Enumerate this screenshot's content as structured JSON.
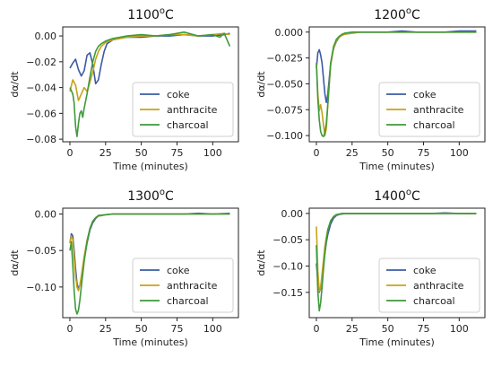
{
  "chart_data": [
    {
      "type": "line",
      "title": "1100°C",
      "title_base": "1100",
      "title_sup": "o",
      "title_suffix": "C",
      "xlabel": "Time (minutes)",
      "ylabel": "dα/dt",
      "xlim": [
        -5,
        118
      ],
      "ylim": [
        -0.082,
        0.007
      ],
      "xticks": [
        0,
        25,
        50,
        75,
        100
      ],
      "yticks": [
        0.0,
        -0.02,
        -0.04,
        -0.06,
        -0.08
      ],
      "ytick_labels": [
        "0.00",
        "−0.02",
        "−0.04",
        "−0.06",
        "−0.08"
      ],
      "grid": false,
      "legend_position": "lower-right",
      "series": [
        {
          "name": "coke",
          "color": "#3b5ba5",
          "x": [
            0,
            2,
            4,
            6,
            8,
            10,
            12,
            14,
            16,
            18,
            20,
            22,
            24,
            26,
            30,
            35,
            40,
            50,
            60,
            70,
            80,
            90,
            100,
            108,
            112
          ],
          "y": [
            -0.025,
            -0.021,
            -0.018,
            -0.026,
            -0.031,
            -0.027,
            -0.015,
            -0.013,
            -0.022,
            -0.037,
            -0.034,
            -0.022,
            -0.012,
            -0.006,
            -0.003,
            -0.002,
            -0.001,
            -0.001,
            0.0,
            0.0,
            0.001,
            0.0,
            0.0,
            0.001,
            0.002
          ]
        },
        {
          "name": "anthracite",
          "color": "#c8a21a",
          "x": [
            0,
            2,
            4,
            6,
            8,
            10,
            12,
            14,
            16,
            18,
            20,
            22,
            25,
            30,
            35,
            40,
            50,
            60,
            70,
            80,
            90,
            100,
            108,
            112
          ],
          "y": [
            -0.043,
            -0.034,
            -0.038,
            -0.05,
            -0.045,
            -0.04,
            -0.043,
            -0.036,
            -0.028,
            -0.018,
            -0.012,
            -0.008,
            -0.005,
            -0.003,
            -0.002,
            -0.001,
            0.0,
            0.0,
            0.001,
            0.001,
            0.0,
            0.001,
            0.002,
            0.001
          ]
        },
        {
          "name": "charcoal",
          "color": "#3f9a3a",
          "x": [
            0,
            2,
            3,
            4,
            5,
            6,
            7,
            8,
            9,
            10,
            12,
            14,
            16,
            18,
            20,
            22,
            25,
            30,
            35,
            40,
            50,
            60,
            70,
            80,
            90,
            100,
            105,
            108,
            110,
            112
          ],
          "y": [
            -0.04,
            -0.045,
            -0.052,
            -0.07,
            -0.078,
            -0.068,
            -0.06,
            -0.058,
            -0.063,
            -0.056,
            -0.045,
            -0.032,
            -0.02,
            -0.012,
            -0.008,
            -0.006,
            -0.004,
            -0.002,
            -0.001,
            0.0,
            0.001,
            0.0,
            0.001,
            0.003,
            0.0,
            0.001,
            -0.001,
            0.002,
            -0.003,
            -0.008
          ]
        }
      ]
    },
    {
      "type": "line",
      "title": "1200°C",
      "title_base": "1200",
      "title_sup": "o",
      "title_suffix": "C",
      "xlabel": "Time (minutes)",
      "ylabel": "dα/dt",
      "xlim": [
        -5,
        118
      ],
      "ylim": [
        -0.106,
        0.005
      ],
      "xticks": [
        0,
        25,
        50,
        75,
        100
      ],
      "yticks": [
        0.0,
        -0.025,
        -0.05,
        -0.075,
        -0.1
      ],
      "ytick_labels": [
        "0.000",
        "−0.025",
        "−0.050",
        "−0.075",
        "−0.100"
      ],
      "grid": false,
      "legend_position": "lower-right",
      "series": [
        {
          "name": "coke",
          "color": "#3b5ba5",
          "x": [
            0,
            1,
            2,
            3,
            4,
            5,
            6,
            7,
            8,
            9,
            10,
            12,
            14,
            16,
            18,
            20,
            25,
            30,
            40,
            50,
            60,
            70,
            80,
            90,
            100,
            112
          ],
          "y": [
            -0.035,
            -0.02,
            -0.017,
            -0.022,
            -0.03,
            -0.045,
            -0.06,
            -0.068,
            -0.06,
            -0.045,
            -0.03,
            -0.016,
            -0.009,
            -0.005,
            -0.003,
            -0.002,
            -0.001,
            0.0,
            0.0,
            0.0,
            0.001,
            0.0,
            0.0,
            0.0,
            0.001,
            0.001
          ]
        },
        {
          "name": "anthracite",
          "color": "#c8a21a",
          "x": [
            0,
            1,
            2,
            3,
            4,
            5,
            6,
            7,
            8,
            9,
            10,
            12,
            14,
            16,
            18,
            20,
            25,
            30,
            40,
            50,
            60,
            70,
            80,
            90,
            100,
            112
          ],
          "y": [
            -0.03,
            -0.06,
            -0.076,
            -0.07,
            -0.078,
            -0.09,
            -0.1,
            -0.093,
            -0.07,
            -0.05,
            -0.032,
            -0.016,
            -0.008,
            -0.005,
            -0.003,
            -0.002,
            -0.001,
            0.0,
            0.0,
            0.0,
            0.0,
            0.0,
            0.0,
            0.0,
            0.0,
            0.0
          ]
        },
        {
          "name": "charcoal",
          "color": "#3f9a3a",
          "x": [
            0,
            1,
            2,
            3,
            4,
            5,
            6,
            7,
            8,
            9,
            10,
            12,
            14,
            16,
            18,
            20,
            25,
            30,
            40,
            50,
            60,
            70,
            80,
            90,
            100,
            112
          ],
          "y": [
            -0.03,
            -0.065,
            -0.085,
            -0.096,
            -0.1,
            -0.101,
            -0.097,
            -0.088,
            -0.07,
            -0.05,
            -0.03,
            -0.014,
            -0.007,
            -0.004,
            -0.002,
            -0.001,
            0.0,
            0.0,
            0.0,
            0.0,
            0.0,
            0.0,
            0.0,
            0.0,
            0.0,
            0.0
          ]
        }
      ]
    },
    {
      "type": "line",
      "title": "1300°C",
      "title_base": "1300",
      "title_sup": "o",
      "title_suffix": "C",
      "xlabel": "Time (minutes)",
      "ylabel": "dα/dt",
      "xlim": [
        -5,
        118
      ],
      "ylim": [
        -0.142,
        0.008
      ],
      "xticks": [
        0,
        25,
        50,
        75,
        100
      ],
      "yticks": [
        0.0,
        -0.05,
        -0.1
      ],
      "ytick_labels": [
        "0.00",
        "−0.05",
        "−0.10"
      ],
      "grid": false,
      "legend_position": "lower-right",
      "series": [
        {
          "name": "coke",
          "color": "#3b5ba5",
          "x": [
            0,
            1,
            2,
            3,
            4,
            5,
            6,
            7,
            8,
            10,
            12,
            14,
            16,
            18,
            20,
            25,
            30,
            40,
            50,
            60,
            70,
            80,
            90,
            100,
            112
          ],
          "y": [
            -0.04,
            -0.027,
            -0.03,
            -0.05,
            -0.075,
            -0.095,
            -0.102,
            -0.098,
            -0.088,
            -0.062,
            -0.04,
            -0.022,
            -0.012,
            -0.006,
            -0.003,
            -0.001,
            0.0,
            0.0,
            0.0,
            0.0,
            0.0,
            0.0,
            0.001,
            0.0,
            0.001
          ]
        },
        {
          "name": "anthracite",
          "color": "#c8a21a",
          "x": [
            0,
            1,
            2,
            3,
            4,
            5,
            6,
            7,
            8,
            10,
            12,
            14,
            16,
            18,
            20,
            25,
            30,
            40,
            50,
            60,
            70,
            80,
            90,
            100,
            112
          ],
          "y": [
            -0.04,
            -0.03,
            -0.035,
            -0.06,
            -0.085,
            -0.1,
            -0.105,
            -0.098,
            -0.085,
            -0.058,
            -0.036,
            -0.02,
            -0.01,
            -0.005,
            -0.003,
            -0.001,
            0.0,
            0.0,
            0.0,
            0.0,
            0.0,
            0.0,
            0.0,
            0.0,
            0.0
          ]
        },
        {
          "name": "charcoal",
          "color": "#3f9a3a",
          "x": [
            0,
            1,
            2,
            3,
            4,
            5,
            6,
            7,
            8,
            10,
            12,
            14,
            16,
            18,
            20,
            25,
            30,
            40,
            50,
            60,
            70,
            80,
            90,
            100,
            112
          ],
          "y": [
            -0.05,
            -0.038,
            -0.07,
            -0.105,
            -0.13,
            -0.137,
            -0.132,
            -0.118,
            -0.1,
            -0.065,
            -0.038,
            -0.02,
            -0.01,
            -0.005,
            -0.002,
            -0.001,
            0.0,
            0.0,
            0.0,
            0.0,
            0.0,
            0.0,
            0.0,
            0.0,
            0.0
          ]
        }
      ]
    },
    {
      "type": "line",
      "title": "1400°C",
      "title_base": "1400",
      "title_sup": "o",
      "title_suffix": "C",
      "xlabel": "Time (minutes)",
      "ylabel": "dα/dt",
      "xlim": [
        -5,
        118
      ],
      "ylim": [
        -0.198,
        0.01
      ],
      "xticks": [
        0,
        25,
        50,
        75,
        100
      ],
      "yticks": [
        0.0,
        -0.05,
        -0.1,
        -0.15
      ],
      "ytick_labels": [
        "0.00",
        "−0.05",
        "−0.10",
        "−0.15"
      ],
      "grid": false,
      "legend_position": "lower-right",
      "series": [
        {
          "name": "coke",
          "color": "#3b5ba5",
          "x": [
            0,
            1,
            2,
            3,
            4,
            5,
            6,
            7,
            8,
            10,
            12,
            14,
            16,
            18,
            20,
            25,
            30,
            40,
            50,
            60,
            70,
            80,
            90,
            100,
            112
          ],
          "y": [
            -0.095,
            -0.13,
            -0.15,
            -0.142,
            -0.122,
            -0.098,
            -0.075,
            -0.055,
            -0.04,
            -0.02,
            -0.009,
            -0.004,
            -0.002,
            -0.001,
            0.0,
            0.0,
            0.0,
            0.0,
            0.0,
            0.0,
            0.0,
            0.0,
            0.001,
            0.0,
            0.0
          ]
        },
        {
          "name": "anthracite",
          "color": "#c8a21a",
          "x": [
            0,
            1,
            2,
            3,
            4,
            5,
            6,
            7,
            8,
            10,
            12,
            14,
            16,
            18,
            20,
            25,
            30,
            40,
            50,
            60,
            70,
            80,
            90,
            100,
            112
          ],
          "y": [
            -0.025,
            -0.11,
            -0.148,
            -0.14,
            -0.115,
            -0.088,
            -0.062,
            -0.045,
            -0.03,
            -0.014,
            -0.006,
            -0.003,
            -0.001,
            0.0,
            0.0,
            0.0,
            0.0,
            0.0,
            0.0,
            0.0,
            0.0,
            0.0,
            0.0,
            0.0,
            0.0
          ]
        },
        {
          "name": "charcoal",
          "color": "#3f9a3a",
          "x": [
            0,
            1,
            2,
            3,
            4,
            5,
            6,
            7,
            8,
            10,
            12,
            14,
            16,
            18,
            20,
            25,
            30,
            40,
            50,
            60,
            70,
            80,
            90,
            100,
            112
          ],
          "y": [
            -0.06,
            -0.15,
            -0.185,
            -0.17,
            -0.14,
            -0.105,
            -0.075,
            -0.05,
            -0.032,
            -0.014,
            -0.006,
            -0.002,
            -0.001,
            0.0,
            0.0,
            0.0,
            0.0,
            0.0,
            0.0,
            0.0,
            0.0,
            0.0,
            0.0,
            0.0,
            0.0
          ]
        }
      ]
    }
  ]
}
